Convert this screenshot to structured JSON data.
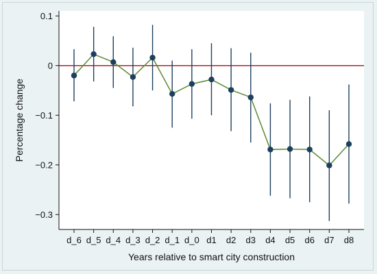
{
  "chart_data": {
    "type": "line",
    "xlabel": "Years relative to smart city construction",
    "ylabel": "Percentage change",
    "categories": [
      "d_6",
      "d_5",
      "d_4",
      "d_3",
      "d_2",
      "d_1",
      "d_0",
      "d1",
      "d2",
      "d3",
      "d4",
      "d5",
      "d6",
      "d7",
      "d8"
    ],
    "ylim": [
      -0.33,
      0.11
    ],
    "yticks": [
      0.1,
      0,
      -0.1,
      -0.2,
      -0.3
    ],
    "ytick_labels": [
      "0.1",
      "0",
      "−0.1",
      "−0.2",
      "−0.3"
    ],
    "reference_line": 0,
    "grid": false,
    "series": [
      {
        "values": [
          -0.02,
          0.023,
          0.007,
          -0.023,
          0.016,
          -0.057,
          -0.037,
          -0.028,
          -0.049,
          -0.064,
          -0.169,
          -0.168,
          -0.169,
          -0.201,
          -0.158
        ],
        "ci_low": [
          -0.072,
          -0.032,
          -0.045,
          -0.082,
          -0.05,
          -0.125,
          -0.107,
          -0.1,
          -0.132,
          -0.155,
          -0.262,
          -0.267,
          -0.275,
          -0.313,
          -0.278
        ],
        "ci_high": [
          0.033,
          0.078,
          0.059,
          0.036,
          0.082,
          0.01,
          0.033,
          0.045,
          0.035,
          0.026,
          -0.076,
          -0.069,
          -0.062,
          -0.09,
          -0.038
        ]
      }
    ],
    "colors": {
      "line": "#5a8a32",
      "marker": "#1c3f5e",
      "ci": "#1c3f5e",
      "zero_line": "#b22222",
      "plot_bg": "#ffffff",
      "outer_bg": "#eaf2f3",
      "axis": "#111111"
    }
  }
}
